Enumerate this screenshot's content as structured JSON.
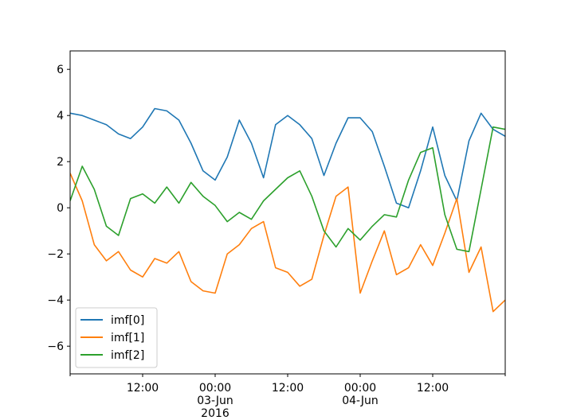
{
  "chart_data": {
    "type": "line",
    "title": "",
    "xlabel": "",
    "ylabel": "",
    "x_range": [
      "2016-06-02 00:00",
      "2016-06-05 00:00"
    ],
    "ylim": [
      -7.2,
      6.8
    ],
    "grid": false,
    "legend_position": "lower-left",
    "x_ticks": [
      {
        "x": "2016-06-02 12:00",
        "label": "12:00"
      },
      {
        "x": "2016-06-03 00:00",
        "label": "00:00\n03-Jun\n2016"
      },
      {
        "x": "2016-06-03 12:00",
        "label": "12:00"
      },
      {
        "x": "2016-06-04 00:00",
        "label": "00:00\n04-Jun"
      },
      {
        "x": "2016-06-04 12:00",
        "label": "12:00"
      }
    ],
    "y_ticks": [
      -6,
      -4,
      -2,
      0,
      2,
      4,
      6
    ],
    "series": [
      {
        "name": "imf[0]",
        "color": "#1f77b4",
        "x": [
          "2016-06-02 00:00",
          "2016-06-02 02:00",
          "2016-06-02 04:00",
          "2016-06-02 06:00",
          "2016-06-02 08:00",
          "2016-06-02 10:00",
          "2016-06-02 12:00",
          "2016-06-02 14:00",
          "2016-06-02 16:00",
          "2016-06-02 18:00",
          "2016-06-02 20:00",
          "2016-06-02 22:00",
          "2016-06-03 00:00",
          "2016-06-03 02:00",
          "2016-06-03 04:00",
          "2016-06-03 06:00",
          "2016-06-03 08:00",
          "2016-06-03 10:00",
          "2016-06-03 12:00",
          "2016-06-03 14:00",
          "2016-06-03 16:00",
          "2016-06-03 18:00",
          "2016-06-03 20:00",
          "2016-06-03 22:00",
          "2016-06-04 00:00",
          "2016-06-04 02:00",
          "2016-06-04 04:00",
          "2016-06-04 06:00",
          "2016-06-04 08:00",
          "2016-06-04 10:00",
          "2016-06-04 12:00",
          "2016-06-04 14:00",
          "2016-06-04 16:00",
          "2016-06-04 18:00",
          "2016-06-04 20:00",
          "2016-06-04 22:00",
          "2016-06-05 00:00"
        ],
        "values": [
          4.1,
          4.0,
          3.8,
          3.6,
          3.2,
          3.0,
          3.5,
          4.3,
          4.2,
          3.8,
          2.8,
          1.6,
          1.2,
          2.2,
          3.8,
          2.8,
          1.3,
          3.6,
          4.0,
          3.6,
          3.0,
          1.4,
          2.8,
          3.9,
          3.9,
          3.3,
          1.8,
          0.2,
          0.0,
          1.6,
          3.5,
          1.4,
          0.3,
          2.9,
          4.1,
          3.4,
          3.1
        ]
      },
      {
        "name": "imf[1]",
        "color": "#ff7f0e",
        "x": [
          "2016-06-02 00:00",
          "2016-06-02 02:00",
          "2016-06-02 04:00",
          "2016-06-02 06:00",
          "2016-06-02 08:00",
          "2016-06-02 10:00",
          "2016-06-02 12:00",
          "2016-06-02 14:00",
          "2016-06-02 16:00",
          "2016-06-02 18:00",
          "2016-06-02 20:00",
          "2016-06-02 22:00",
          "2016-06-03 00:00",
          "2016-06-03 02:00",
          "2016-06-03 04:00",
          "2016-06-03 06:00",
          "2016-06-03 08:00",
          "2016-06-03 10:00",
          "2016-06-03 12:00",
          "2016-06-03 14:00",
          "2016-06-03 16:00",
          "2016-06-03 18:00",
          "2016-06-03 20:00",
          "2016-06-03 22:00",
          "2016-06-04 00:00",
          "2016-06-04 02:00",
          "2016-06-04 04:00",
          "2016-06-04 06:00",
          "2016-06-04 08:00",
          "2016-06-04 10:00",
          "2016-06-04 12:00",
          "2016-06-04 14:00",
          "2016-06-04 16:00",
          "2016-06-04 18:00",
          "2016-06-04 20:00",
          "2016-06-04 22:00",
          "2016-06-05 00:00"
        ],
        "values": [
          1.5,
          0.3,
          -1.6,
          -2.3,
          -1.9,
          -2.7,
          -3.0,
          -2.2,
          -2.4,
          -1.9,
          -3.2,
          -3.6,
          -3.7,
          -2.0,
          -1.6,
          -0.9,
          -0.6,
          -2.6,
          -2.8,
          -3.4,
          -3.1,
          -1.2,
          0.5,
          0.9,
          -3.7,
          -2.3,
          -1.0,
          -2.9,
          -2.6,
          -1.6,
          -2.5,
          -1.1,
          0.4,
          -2.8,
          -1.7,
          -4.5,
          -4.0
        ]
      },
      {
        "name": "imf[2]",
        "color": "#2ca02c",
        "x": [
          "2016-06-02 00:00",
          "2016-06-02 02:00",
          "2016-06-02 04:00",
          "2016-06-02 06:00",
          "2016-06-02 08:00",
          "2016-06-02 10:00",
          "2016-06-02 12:00",
          "2016-06-02 14:00",
          "2016-06-02 16:00",
          "2016-06-02 18:00",
          "2016-06-02 20:00",
          "2016-06-02 22:00",
          "2016-06-03 00:00",
          "2016-06-03 02:00",
          "2016-06-03 04:00",
          "2016-06-03 06:00",
          "2016-06-03 08:00",
          "2016-06-03 10:00",
          "2016-06-03 12:00",
          "2016-06-03 14:00",
          "2016-06-03 16:00",
          "2016-06-03 18:00",
          "2016-06-03 20:00",
          "2016-06-03 22:00",
          "2016-06-04 00:00",
          "2016-06-04 02:00",
          "2016-06-04 04:00",
          "2016-06-04 06:00",
          "2016-06-04 08:00",
          "2016-06-04 10:00",
          "2016-06-04 12:00",
          "2016-06-04 14:00",
          "2016-06-04 16:00",
          "2016-06-04 18:00",
          "2016-06-04 20:00",
          "2016-06-04 22:00",
          "2016-06-05 00:00"
        ],
        "values": [
          0.3,
          1.8,
          0.8,
          -0.8,
          -1.2,
          0.4,
          0.6,
          0.2,
          0.9,
          0.2,
          1.1,
          0.5,
          0.1,
          -0.6,
          -0.2,
          -0.5,
          0.3,
          0.8,
          1.3,
          1.6,
          0.5,
          -1.0,
          -1.7,
          -0.9,
          -1.4,
          -0.8,
          -0.3,
          -0.4,
          1.2,
          2.4,
          2.6,
          -0.3,
          -1.8,
          -1.9,
          0.8,
          3.5,
          3.4
        ]
      }
    ]
  }
}
